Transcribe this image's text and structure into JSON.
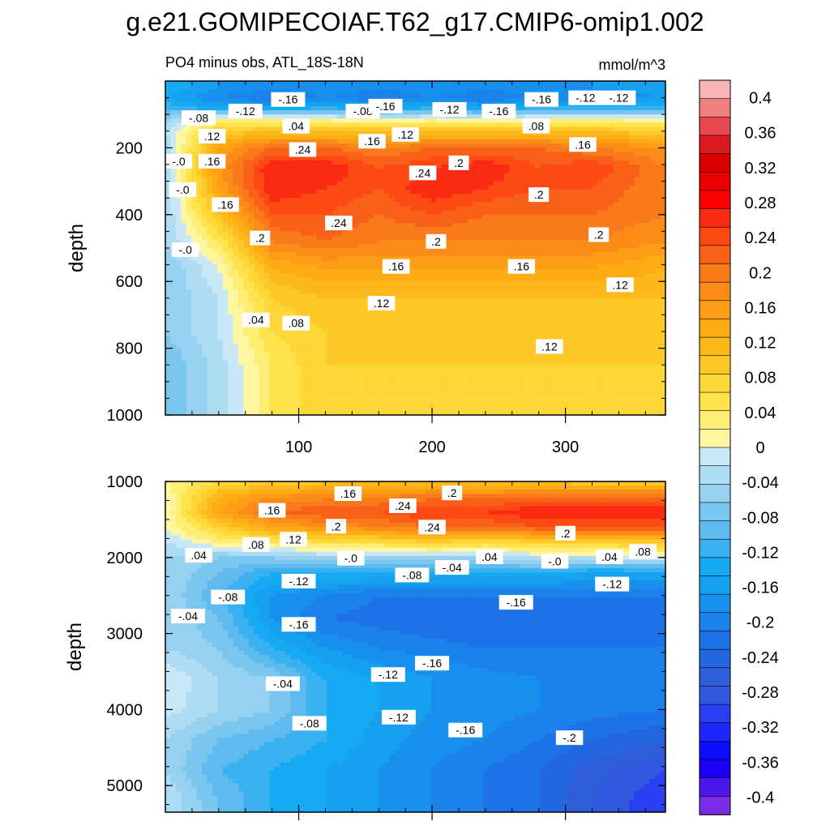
{
  "title": "g.e21.GOMIPECOIAF.T62_g17.CMIP6-omip1.002",
  "chart_data": {
    "type": "heatmap",
    "subtitle": "PO4 minus obs, ATL_18S-18N",
    "units": "mmol/m^3",
    "ylabel": "depth",
    "xlabel": "",
    "x_range": [
      0,
      375
    ],
    "x_ticks": [
      100,
      200,
      300
    ],
    "panels": [
      {
        "name": "upper",
        "depth_range": [
          0,
          1000
        ],
        "y_ticks": [
          200,
          400,
          600,
          800,
          1000
        ],
        "x": [
          0,
          40,
          80,
          120,
          160,
          200,
          240,
          280,
          320,
          375
        ],
        "depth": [
          20,
          50,
          80,
          110,
          150,
          200,
          260,
          320,
          400,
          480,
          560,
          650,
          750,
          850,
          950,
          1000
        ],
        "z": [
          [
            -0.1,
            -0.14,
            -0.16,
            -0.14,
            -0.16,
            -0.14,
            -0.16,
            -0.14,
            -0.14,
            -0.12
          ],
          [
            -0.12,
            -0.16,
            -0.18,
            -0.16,
            -0.18,
            -0.16,
            -0.18,
            -0.16,
            -0.16,
            -0.14
          ],
          [
            -0.08,
            -0.12,
            -0.12,
            -0.1,
            -0.12,
            -0.1,
            -0.12,
            -0.1,
            -0.1,
            -0.1
          ],
          [
            -0.04,
            0.04,
            0.02,
            0.02,
            0.0,
            0.02,
            0.0,
            0.02,
            0.02,
            0.02
          ],
          [
            0.0,
            0.1,
            0.12,
            0.12,
            0.12,
            0.12,
            0.12,
            0.12,
            0.12,
            0.1
          ],
          [
            -0.02,
            0.16,
            0.22,
            0.22,
            0.2,
            0.22,
            0.22,
            0.22,
            0.2,
            0.18
          ],
          [
            -0.02,
            0.18,
            0.28,
            0.28,
            0.24,
            0.26,
            0.28,
            0.24,
            0.26,
            0.2
          ],
          [
            -0.02,
            0.16,
            0.28,
            0.26,
            0.24,
            0.28,
            0.26,
            0.24,
            0.24,
            0.2
          ],
          [
            -0.02,
            0.12,
            0.24,
            0.24,
            0.22,
            0.24,
            0.22,
            0.22,
            0.22,
            0.2
          ],
          [
            -0.02,
            0.06,
            0.2,
            0.22,
            0.2,
            0.2,
            0.2,
            0.2,
            0.2,
            0.18
          ],
          [
            -0.04,
            0.02,
            0.14,
            0.16,
            0.16,
            0.16,
            0.16,
            0.16,
            0.16,
            0.14
          ],
          [
            -0.04,
            0.0,
            0.1,
            0.12,
            0.12,
            0.12,
            0.12,
            0.12,
            0.12,
            0.12
          ],
          [
            -0.04,
            0.0,
            0.08,
            0.1,
            0.11,
            0.11,
            0.11,
            0.11,
            0.11,
            0.1
          ],
          [
            -0.06,
            -0.01,
            0.06,
            0.1,
            0.1,
            0.1,
            0.1,
            0.1,
            0.1,
            0.1
          ],
          [
            -0.06,
            -0.01,
            0.06,
            0.1,
            0.1,
            0.1,
            0.1,
            0.1,
            0.1,
            0.1
          ],
          [
            -0.06,
            -0.01,
            0.06,
            0.1,
            0.1,
            0.1,
            0.1,
            0.1,
            0.1,
            0.1
          ]
        ],
        "contour_labels": [
          {
            "t": "-.12",
            "x": 60,
            "d": 90
          },
          {
            "t": "-.16",
            "x": 92,
            "d": 55
          },
          {
            "t": "-.08",
            "x": 148,
            "d": 90
          },
          {
            "t": "-.16",
            "x": 165,
            "d": 75
          },
          {
            "t": "-.12",
            "x": 213,
            "d": 85
          },
          {
            "t": "-.16",
            "x": 250,
            "d": 90
          },
          {
            "t": "-.16",
            "x": 282,
            "d": 55
          },
          {
            "t": "-.12",
            "x": 315,
            "d": 50
          },
          {
            "t": "-.12",
            "x": 340,
            "d": 50
          },
          {
            "t": "-.08",
            "x": 25,
            "d": 110
          },
          {
            "t": ".04",
            "x": 98,
            "d": 135
          },
          {
            "t": ".08",
            "x": 278,
            "d": 135
          },
          {
            "t": ".12",
            "x": 35,
            "d": 165
          },
          {
            "t": ".12",
            "x": 180,
            "d": 160
          },
          {
            "t": ".16",
            "x": 155,
            "d": 180
          },
          {
            "t": ".16",
            "x": 313,
            "d": 190
          },
          {
            "t": ".24",
            "x": 103,
            "d": 205
          },
          {
            "t": ".16",
            "x": 35,
            "d": 240
          },
          {
            "t": "-.0",
            "x": 10,
            "d": 240
          },
          {
            "t": ".24",
            "x": 193,
            "d": 275
          },
          {
            "t": ".2",
            "x": 220,
            "d": 245
          },
          {
            "t": "-.0",
            "x": 13,
            "d": 325
          },
          {
            "t": ".2",
            "x": 280,
            "d": 340
          },
          {
            "t": ".16",
            "x": 45,
            "d": 370
          },
          {
            "t": ".24",
            "x": 130,
            "d": 425
          },
          {
            "t": ".2",
            "x": 71,
            "d": 470
          },
          {
            "t": ".2",
            "x": 203,
            "d": 480
          },
          {
            "t": ".2",
            "x": 325,
            "d": 460
          },
          {
            "t": "-.0",
            "x": 15,
            "d": 505
          },
          {
            "t": ".16",
            "x": 173,
            "d": 555
          },
          {
            "t": ".16",
            "x": 267,
            "d": 555
          },
          {
            "t": ".12",
            "x": 341,
            "d": 610
          },
          {
            "t": ".12",
            "x": 162,
            "d": 665
          },
          {
            "t": ".04",
            "x": 68,
            "d": 715
          },
          {
            "t": ".08",
            "x": 98,
            "d": 725
          },
          {
            "t": ".12",
            "x": 288,
            "d": 795
          }
        ]
      },
      {
        "name": "lower",
        "depth_range": [
          1000,
          5350
        ],
        "y_ticks": [
          1000,
          2000,
          3000,
          4000,
          5000
        ],
        "x": [
          0,
          40,
          80,
          120,
          160,
          200,
          240,
          280,
          320,
          375
        ],
        "depth": [
          1000,
          1200,
          1400,
          1600,
          1800,
          2000,
          2200,
          2500,
          2800,
          3200,
          3600,
          4000,
          4400,
          4800,
          5200,
          5350
        ],
        "z": [
          [
            0.04,
            0.08,
            0.1,
            0.11,
            0.11,
            0.12,
            0.11,
            0.11,
            0.1,
            0.1
          ],
          [
            0.02,
            0.14,
            0.18,
            0.19,
            0.2,
            0.21,
            0.21,
            0.22,
            0.22,
            0.22
          ],
          [
            0.02,
            0.16,
            0.22,
            0.24,
            0.24,
            0.26,
            0.26,
            0.28,
            0.28,
            0.28
          ],
          [
            0.02,
            0.1,
            0.16,
            0.18,
            0.2,
            0.22,
            0.22,
            0.24,
            0.24,
            0.24
          ],
          [
            0.0,
            0.04,
            0.06,
            0.08,
            0.08,
            0.1,
            0.08,
            0.1,
            0.1,
            0.1
          ],
          [
            -0.02,
            -0.04,
            -0.04,
            -0.02,
            -0.02,
            -0.02,
            -0.02,
            0.0,
            0.0,
            0.02
          ],
          [
            -0.02,
            -0.06,
            -0.1,
            -0.1,
            -0.1,
            -0.1,
            -0.1,
            -0.1,
            -0.12,
            -0.12
          ],
          [
            -0.02,
            -0.08,
            -0.14,
            -0.16,
            -0.18,
            -0.18,
            -0.18,
            -0.18,
            -0.18,
            -0.18
          ],
          [
            -0.02,
            -0.06,
            -0.14,
            -0.18,
            -0.19,
            -0.2,
            -0.2,
            -0.2,
            -0.2,
            -0.2
          ],
          [
            -0.02,
            -0.04,
            -0.1,
            -0.14,
            -0.16,
            -0.17,
            -0.18,
            -0.18,
            -0.18,
            -0.18
          ],
          [
            0.02,
            -0.02,
            -0.04,
            -0.1,
            -0.12,
            -0.14,
            -0.15,
            -0.16,
            -0.16,
            -0.16
          ],
          [
            0.01,
            -0.02,
            -0.04,
            -0.1,
            -0.12,
            -0.14,
            -0.15,
            -0.16,
            -0.17,
            -0.18
          ],
          [
            -0.02,
            -0.06,
            -0.08,
            -0.1,
            -0.13,
            -0.15,
            -0.16,
            -0.18,
            -0.2,
            -0.22
          ],
          [
            -0.02,
            -0.08,
            -0.1,
            -0.12,
            -0.14,
            -0.16,
            -0.18,
            -0.2,
            -0.23,
            -0.26
          ],
          [
            0.0,
            -0.06,
            -0.1,
            -0.12,
            -0.14,
            -0.16,
            -0.18,
            -0.2,
            -0.24,
            -0.28
          ],
          [
            0.0,
            -0.06,
            -0.1,
            -0.12,
            -0.14,
            -0.16,
            -0.18,
            -0.2,
            -0.24,
            -0.28
          ]
        ],
        "contour_labels": [
          {
            "t": ".16",
            "x": 137,
            "d": 1160
          },
          {
            "t": ".2",
            "x": 215,
            "d": 1150
          },
          {
            "t": ".24",
            "x": 178,
            "d": 1320
          },
          {
            "t": ".16",
            "x": 80,
            "d": 1380
          },
          {
            "t": ".2",
            "x": 128,
            "d": 1590
          },
          {
            "t": ".24",
            "x": 200,
            "d": 1600
          },
          {
            "t": ".2",
            "x": 300,
            "d": 1680
          },
          {
            "t": ".08",
            "x": 68,
            "d": 1830
          },
          {
            "t": ".12",
            "x": 96,
            "d": 1760
          },
          {
            "t": ".04",
            "x": 25,
            "d": 1970
          },
          {
            "t": "-.0",
            "x": 139,
            "d": 2010
          },
          {
            "t": ".04",
            "x": 243,
            "d": 1990
          },
          {
            "t": "-.0",
            "x": 292,
            "d": 2050
          },
          {
            "t": ".04",
            "x": 333,
            "d": 1990
          },
          {
            "t": ".08",
            "x": 358,
            "d": 1920
          },
          {
            "t": "-.04",
            "x": 215,
            "d": 2130
          },
          {
            "t": "-.08",
            "x": 185,
            "d": 2230
          },
          {
            "t": "-.12",
            "x": 100,
            "d": 2310
          },
          {
            "t": "-.12",
            "x": 335,
            "d": 2350
          },
          {
            "t": "-.08",
            "x": 47,
            "d": 2520
          },
          {
            "t": "-.16",
            "x": 263,
            "d": 2590
          },
          {
            "t": "-.04",
            "x": 17,
            "d": 2770
          },
          {
            "t": "-.16",
            "x": 100,
            "d": 2880
          },
          {
            "t": "-.16",
            "x": 200,
            "d": 3390
          },
          {
            "t": "-.12",
            "x": 167,
            "d": 3540
          },
          {
            "t": "-.04",
            "x": 88,
            "d": 3660
          },
          {
            "t": "-.12",
            "x": 175,
            "d": 4100
          },
          {
            "t": "-.08",
            "x": 108,
            "d": 4180
          },
          {
            "t": "-.16",
            "x": 225,
            "d": 4270
          },
          {
            "t": "-.2",
            "x": 303,
            "d": 4370
          }
        ]
      }
    ],
    "colorbar": {
      "labels": [
        "0.4",
        "0.36",
        "0.32",
        "0.28",
        "0.24",
        "0.2",
        "0.16",
        "0.12",
        "0.08",
        "0.04",
        "0",
        "-0.04",
        "-0.08",
        "-0.12",
        "-0.16",
        "-0.2",
        "-0.24",
        "-0.28",
        "-0.32",
        "-0.36",
        "-0.4"
      ],
      "label_values": [
        0.4,
        0.36,
        0.32,
        0.28,
        0.24,
        0.2,
        0.16,
        0.12,
        0.08,
        0.04,
        0,
        -0.04,
        -0.08,
        -0.12,
        -0.16,
        -0.2,
        -0.24,
        -0.28,
        -0.32,
        -0.36,
        -0.4
      ],
      "levels_top_to_bottom": [
        0.42,
        0.4,
        0.38,
        0.36,
        0.34,
        0.32,
        0.3,
        0.28,
        0.26,
        0.24,
        0.22,
        0.2,
        0.18,
        0.16,
        0.14,
        0.12,
        0.1,
        0.08,
        0.06,
        0.04,
        0.02,
        0.0,
        -0.02,
        -0.04,
        -0.06,
        -0.08,
        -0.1,
        -0.12,
        -0.14,
        -0.16,
        -0.18,
        -0.2,
        -0.22,
        -0.24,
        -0.26,
        -0.28,
        -0.3,
        -0.32,
        -0.34,
        -0.36,
        -0.38,
        -0.4,
        -0.42
      ],
      "colors_top_to_bottom": [
        "#F9B4B7",
        "#F08080",
        "#E8474D",
        "#D91A1F",
        "#DB0000",
        "#EA0000",
        "#FA0000",
        "#FB2A12",
        "#FD4A14",
        "#F96018",
        "#F97A1A",
        "#FB8C18",
        "#FD9E16",
        "#FDAC14",
        "#FDB91C",
        "#FDC828",
        "#FDD637",
        "#FEE34D",
        "#FEEE76",
        "#FFF6A1",
        "#C8E8F8",
        "#AEDDF3",
        "#96D2F0",
        "#7BC6EE",
        "#5FBAEE",
        "#3AB1F0",
        "#16AAF2",
        "#16A0F0",
        "#1690EC",
        "#1A82EA",
        "#1C72E6",
        "#2366E0",
        "#2F5FD8",
        "#3258E0",
        "#2A3FF2",
        "#1C26F8",
        "#0C0CFD",
        "#1C00F4",
        "#4A18EA",
        "#7A2BE6"
      ]
    }
  }
}
